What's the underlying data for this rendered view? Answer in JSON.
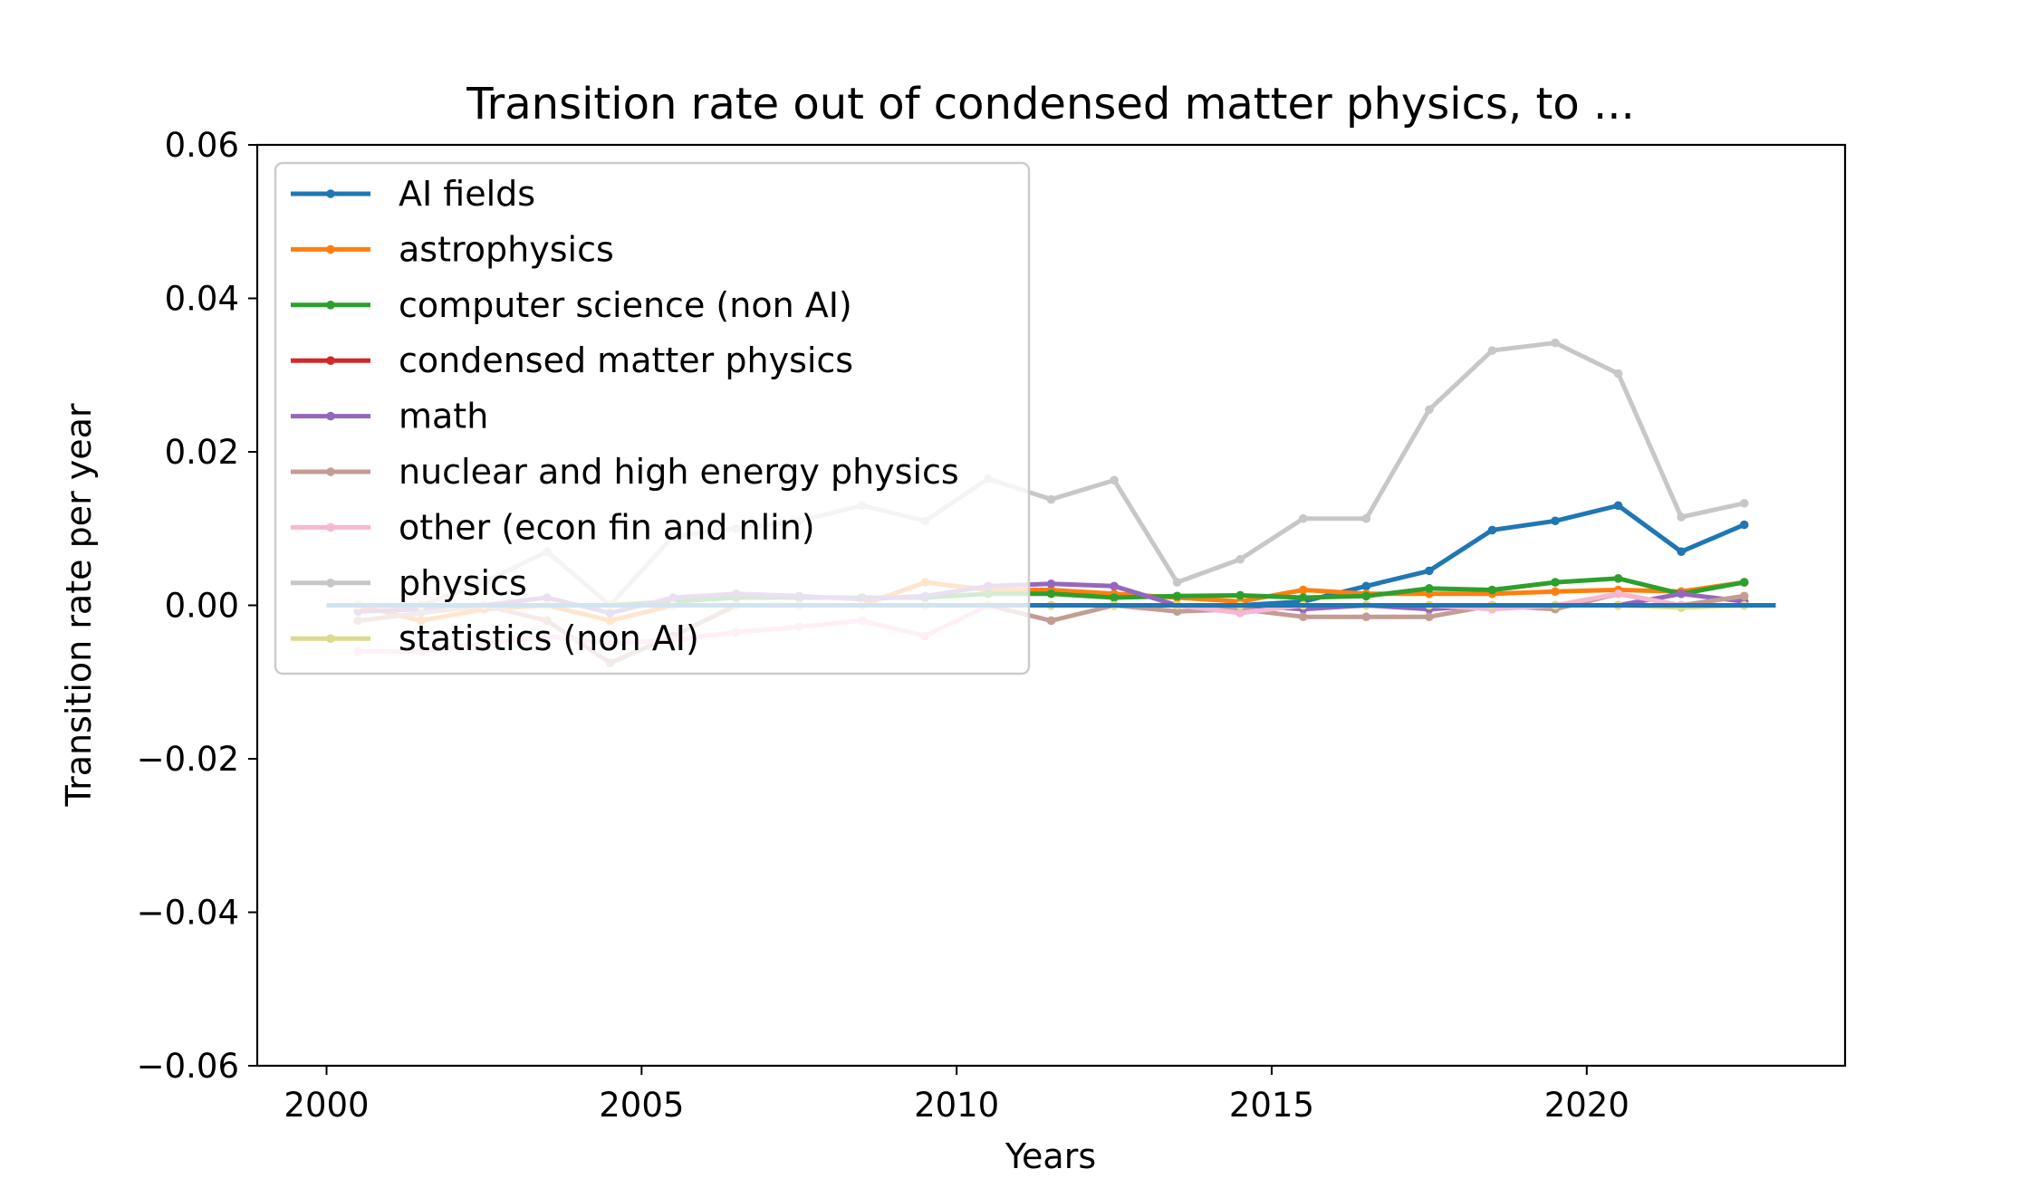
{
  "chart_data": {
    "type": "line",
    "title": "Transition rate out of condensed matter physics, to ...",
    "xlabel": "Years",
    "ylabel": "Transition rate per year",
    "xlim": [
      1998.9,
      2024.1
    ],
    "ylim": [
      -0.06,
      0.06
    ],
    "xticks": [
      2000,
      2005,
      2010,
      2015,
      2020
    ],
    "xtick_labels": [
      "2000",
      "2005",
      "2010",
      "2015",
      "2020"
    ],
    "yticks": [
      0.06,
      0.04,
      0.02,
      0.0,
      -0.02,
      -0.04,
      -0.06
    ],
    "ytick_labels": [
      "0.06",
      "0.04",
      "0.02",
      "0.00",
      "−0.02",
      "−0.04",
      "−0.06"
    ],
    "grid": false,
    "legend_position": "upper-left",
    "x": [
      2000.5,
      2001.5,
      2002.5,
      2003.5,
      2004.5,
      2005.5,
      2006.5,
      2007.5,
      2008.5,
      2009.5,
      2010.5,
      2011.5,
      2012.5,
      2013.5,
      2014.5,
      2015.5,
      2016.5,
      2017.5,
      2018.5,
      2019.5,
      2020.5,
      2021.5,
      2022.5
    ],
    "baseline": {
      "name": "zero line",
      "y": 0.0,
      "x_range": [
        2000,
        2023
      ],
      "color": "#1f77b4"
    },
    "series": [
      {
        "name": "AI fields",
        "color": "#1f77b4",
        "values": [
          0.0,
          0.0,
          0.0,
          0.0,
          0.0,
          0.0,
          0.0,
          0.0,
          0.0,
          0.0,
          0.0,
          0.0,
          0.0,
          0.0,
          0.0,
          0.0005,
          0.0025,
          0.0045,
          0.0098,
          0.011,
          0.013,
          0.007,
          0.0105
        ]
      },
      {
        "name": "astrophysics",
        "color": "#ff7f0e",
        "values": [
          0.0,
          -0.002,
          -0.0005,
          0.0,
          -0.002,
          0.0,
          0.0,
          0.0,
          0.0,
          0.003,
          0.002,
          0.002,
          0.0015,
          0.001,
          0.0005,
          0.002,
          0.0015,
          0.0015,
          0.0015,
          0.0018,
          0.002,
          0.0018,
          0.003
        ]
      },
      {
        "name": "computer science (non AI)",
        "color": "#2ca02c",
        "values": [
          0.0,
          0.0,
          0.0,
          0.0,
          0.0,
          0.0005,
          0.001,
          0.001,
          0.001,
          0.001,
          0.0015,
          0.0015,
          0.001,
          0.0012,
          0.0013,
          0.001,
          0.0012,
          0.0022,
          0.002,
          0.003,
          0.0035,
          0.0015,
          0.003
        ]
      },
      {
        "name": "condensed matter physics",
        "color": "#d62728",
        "values": [
          0.0,
          0.0,
          0.0,
          0.0,
          0.0,
          0.0,
          0.0,
          0.0,
          0.0,
          0.0,
          0.0,
          0.0,
          0.0,
          0.0,
          0.0,
          0.0,
          0.0,
          0.0,
          0.0,
          0.0,
          0.0,
          0.0,
          0.0
        ]
      },
      {
        "name": "math",
        "color": "#9467bd",
        "values": [
          -0.0008,
          -0.0005,
          0.0,
          0.001,
          -0.001,
          0.001,
          0.0015,
          0.0012,
          0.0008,
          0.0012,
          0.0025,
          0.0028,
          0.0025,
          0.0,
          0.0,
          -0.0005,
          0.0,
          -0.0005,
          0.0,
          0.0,
          0.0,
          0.0015,
          0.0005
        ]
      },
      {
        "name": "nuclear and high energy physics",
        "color": "#c49c94",
        "values": [
          -0.002,
          -0.001,
          0.0,
          -0.002,
          -0.0075,
          -0.004,
          0.0,
          0.0,
          0.0,
          0.0,
          0.0,
          -0.002,
          0.0,
          -0.0008,
          -0.0005,
          -0.0015,
          -0.0015,
          -0.0015,
          0.0,
          -0.0005,
          0.0015,
          0.0,
          0.0012
        ]
      },
      {
        "name": "other (econ fin and nlin)",
        "color": "#f7b6d2",
        "values": [
          -0.006,
          -0.006,
          -0.005,
          -0.004,
          -0.005,
          -0.0045,
          -0.0035,
          -0.0028,
          -0.002,
          -0.004,
          0.0,
          0.0,
          0.0,
          0.0,
          -0.001,
          0.0,
          0.0,
          0.0,
          -0.0005,
          0.0,
          0.0015,
          0.0,
          0.0
        ]
      },
      {
        "name": "physics",
        "color": "#c7c7c7",
        "values": [
          0.0,
          0.0,
          0.003,
          0.007,
          0.0,
          0.009,
          0.01,
          0.011,
          0.013,
          0.011,
          0.0165,
          0.0138,
          0.0163,
          0.003,
          0.006,
          0.0113,
          0.0113,
          0.0255,
          0.0332,
          0.0342,
          0.0302,
          0.0115,
          0.0133
        ]
      },
      {
        "name": "statistics (non AI)",
        "color": "#dbdb8d",
        "values": [
          0.0,
          0.0,
          0.0,
          0.0,
          0.0,
          0.0,
          0.0,
          0.0,
          0.0,
          0.0,
          0.0,
          0.0,
          0.0,
          0.0,
          0.0,
          0.0,
          0.0,
          0.0,
          0.0,
          0.0,
          0.0,
          -0.0003,
          0.0
        ]
      }
    ]
  }
}
